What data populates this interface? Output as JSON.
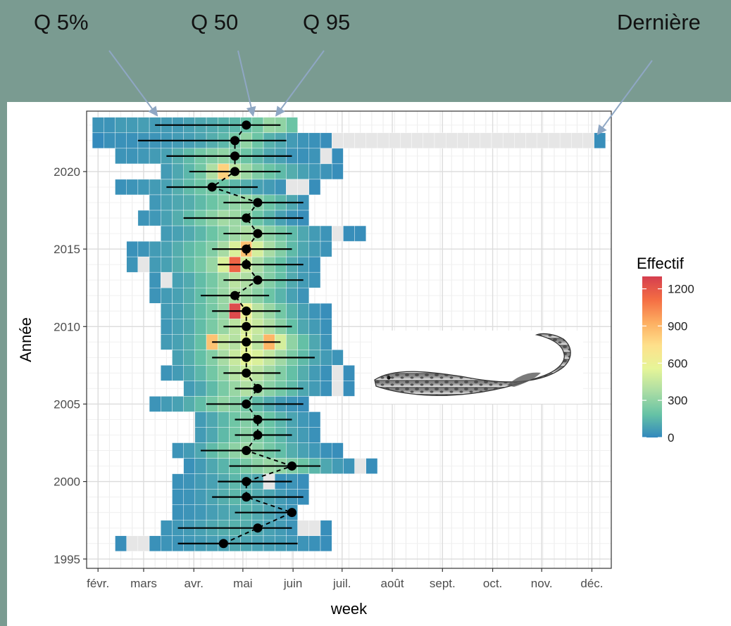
{
  "callouts": [
    {
      "label": "Q 5%",
      "week": 10.2
    },
    {
      "label": "Q 50",
      "week": 18.6
    },
    {
      "label": "Q 95",
      "week": 20.6
    },
    {
      "label": "Dernière",
      "week": 48.8
    }
  ],
  "chart_data": {
    "type": "heatmap",
    "xlabel": "week",
    "ylabel": "Année",
    "x_tick_labels": [
      "févr.",
      "mars",
      "avr.",
      "mai",
      "juin",
      "juil.",
      "août",
      "sept.",
      "oct.",
      "nov.",
      "déc."
    ],
    "x_tick_weeks": [
      5,
      9,
      13.4,
      17.7,
      22.1,
      26.4,
      30.8,
      35.2,
      39.6,
      43.9,
      48.3
    ],
    "xlim": [
      4,
      50
    ],
    "y_ticks": [
      1995,
      2000,
      2005,
      2010,
      2015,
      2020
    ],
    "ylim": [
      1994.4,
      2023.9
    ],
    "legend": {
      "title": "Effectif",
      "ticks": [
        0,
        300,
        600,
        900,
        1200
      ],
      "range": [
        0,
        1300
      ],
      "position": "right",
      "colors": [
        "#3288bd",
        "#66c2a5",
        "#abdda4",
        "#e6f598",
        "#fee08b",
        "#fdae61",
        "#f46d43",
        "#d53e4f"
      ]
    },
    "missing_color": "#e6e6e6",
    "grid": true,
    "quantiles": [
      {
        "year": 2023,
        "q5": 10.0,
        "q50": 18.0,
        "q95": 21.0
      },
      {
        "year": 2022,
        "q5": 8.5,
        "q50": 17.0,
        "q95": 21.5
      },
      {
        "year": 2021,
        "q5": 11.0,
        "q50": 17.0,
        "q95": 22.0
      },
      {
        "year": 2020,
        "q5": 13.0,
        "q50": 17.0,
        "q95": 21.0
      },
      {
        "year": 2019,
        "q5": 11.0,
        "q50": 15.0,
        "q95": 19.0
      },
      {
        "year": 2018,
        "q5": 16.0,
        "q50": 19.0,
        "q95": 23.0
      },
      {
        "year": 2017,
        "q5": 12.5,
        "q50": 18.0,
        "q95": 23.0
      },
      {
        "year": 2016,
        "q5": 16.0,
        "q50": 19.0,
        "q95": 22.0
      },
      {
        "year": 2015,
        "q5": 15.0,
        "q50": 18.0,
        "q95": 22.0
      },
      {
        "year": 2014,
        "q5": 15.5,
        "q50": 18.0,
        "q95": 23.0
      },
      {
        "year": 2013,
        "q5": 16.0,
        "q50": 19.0,
        "q95": 23.0
      },
      {
        "year": 2012,
        "q5": 14.0,
        "q50": 17.0,
        "q95": 20.0
      },
      {
        "year": 2011,
        "q5": 15.0,
        "q50": 18.0,
        "q95": 21.0
      },
      {
        "year": 2010,
        "q5": 16.0,
        "q50": 18.0,
        "q95": 22.0
      },
      {
        "year": 2009,
        "q5": 15.0,
        "q50": 18.0,
        "q95": 21.0
      },
      {
        "year": 2008,
        "q5": 15.0,
        "q50": 18.0,
        "q95": 24.0
      },
      {
        "year": 2007,
        "q5": 16.0,
        "q50": 18.0,
        "q95": 21.0
      },
      {
        "year": 2006,
        "q5": 17.0,
        "q50": 19.0,
        "q95": 23.0
      },
      {
        "year": 2005,
        "q5": 14.5,
        "q50": 18.0,
        "q95": 23.0
      },
      {
        "year": 2004,
        "q5": 17.0,
        "q50": 19.0,
        "q95": 22.0
      },
      {
        "year": 2003,
        "q5": 17.0,
        "q50": 19.0,
        "q95": 22.0
      },
      {
        "year": 2002,
        "q5": 14.0,
        "q50": 18.0,
        "q95": 21.0
      },
      {
        "year": 2001,
        "q5": 16.5,
        "q50": 22.0,
        "q95": 24.5
      },
      {
        "year": 2000,
        "q5": 15.5,
        "q50": 18.0,
        "q95": 22.0
      },
      {
        "year": 1999,
        "q5": 15.0,
        "q50": 18.0,
        "q95": 23.0
      },
      {
        "year": 1998,
        "q5": 17.0,
        "q50": 22.0,
        "q95": 22.0
      },
      {
        "year": 1997,
        "q5": 12.0,
        "q50": 19.0,
        "q95": 22.0
      },
      {
        "year": 1996,
        "q5": 12.0,
        "q50": 16.0,
        "q95": 22.5
      }
    ],
    "rows": [
      {
        "year": 2023,
        "start": 5,
        "values": [
          40,
          40,
          60,
          60,
          70,
          60,
          60,
          60,
          80,
          100,
          110,
          130,
          150,
          180,
          220,
          320,
          300,
          200
        ]
      },
      {
        "year": 2022,
        "start": 5,
        "values": [
          10,
          30,
          30,
          30,
          40,
          40,
          50,
          60,
          70,
          90,
          120,
          150,
          220,
          300,
          200,
          130,
          100,
          60,
          40,
          30,
          20,
          null,
          null,
          null,
          null,
          null,
          null,
          null,
          null,
          null,
          null,
          null,
          null,
          null,
          null,
          null,
          null,
          null,
          null,
          null,
          null,
          null,
          null,
          null,
          20
        ]
      },
      {
        "year": 2021,
        "start": 7,
        "values": [
          40,
          40,
          50,
          60,
          80,
          120,
          160,
          220,
          260,
          300,
          250,
          200,
          150,
          100,
          80,
          40,
          30,
          40,
          null,
          20
        ]
      },
      {
        "year": 2020,
        "start": 11,
        "values": [
          60,
          100,
          150,
          220,
          380,
          800,
          420,
          330,
          250,
          200,
          160,
          120,
          80,
          50,
          40,
          20
        ]
      },
      {
        "year": 2019,
        "start": 7,
        "values": [
          30,
          40,
          50,
          60,
          80,
          120,
          160,
          200,
          230,
          200,
          150,
          120,
          80,
          60,
          40,
          null,
          null,
          20
        ]
      },
      {
        "year": 2018,
        "start": 10,
        "values": [
          50,
          80,
          100,
          120,
          160,
          200,
          250,
          300,
          320,
          260,
          200,
          150,
          100,
          40
        ]
      },
      {
        "year": 2017,
        "start": 9,
        "values": [
          40,
          50,
          80,
          120,
          160,
          220,
          280,
          350,
          330,
          280,
          200,
          140,
          80,
          40,
          20
        ]
      },
      {
        "year": 2016,
        "start": 11,
        "values": [
          60,
          80,
          110,
          150,
          200,
          260,
          330,
          380,
          340,
          280,
          220,
          160,
          100,
          60,
          40,
          null,
          20,
          20
        ]
      },
      {
        "year": 2015,
        "start": 8,
        "values": [
          30,
          40,
          60,
          80,
          120,
          160,
          200,
          260,
          360,
          520,
          860,
          500,
          360,
          260,
          160,
          100,
          60,
          40
        ]
      },
      {
        "year": 2014,
        "start": 8,
        "values": [
          40,
          null,
          60,
          80,
          120,
          170,
          230,
          320,
          520,
          1150,
          480,
          360,
          260,
          180,
          110,
          60,
          30
        ]
      },
      {
        "year": 2013,
        "start": 10,
        "values": [
          40,
          null,
          80,
          110,
          170,
          230,
          320,
          420,
          380,
          320,
          260,
          180,
          110,
          60,
          40
        ]
      },
      {
        "year": 2012,
        "start": 10,
        "values": [
          40,
          60,
          80,
          120,
          170,
          240,
          320,
          390,
          340,
          280,
          200,
          140,
          80,
          40
        ]
      },
      {
        "year": 2011,
        "start": 11,
        "values": [
          60,
          80,
          120,
          170,
          230,
          310,
          1250,
          600,
          420,
          320,
          220,
          140,
          80,
          40,
          20
        ]
      },
      {
        "year": 2010,
        "start": 11,
        "values": [
          50,
          80,
          110,
          170,
          240,
          320,
          420,
          520,
          460,
          380,
          280,
          180,
          100,
          60,
          30
        ]
      },
      {
        "year": 2009,
        "start": 11,
        "values": [
          60,
          80,
          120,
          180,
          850,
          450,
          400,
          550,
          420,
          900,
          500,
          300,
          180,
          100,
          40
        ]
      },
      {
        "year": 2008,
        "start": 12,
        "values": [
          80,
          120,
          180,
          260,
          360,
          460,
          560,
          520,
          440,
          340,
          240,
          160,
          100,
          60,
          40
        ]
      },
      {
        "year": 2007,
        "start": 11,
        "values": [
          40,
          60,
          100,
          150,
          220,
          300,
          400,
          470,
          420,
          340,
          260,
          180,
          120,
          60,
          30,
          null,
          20
        ]
      },
      {
        "year": 2006,
        "start": 13,
        "values": [
          60,
          100,
          160,
          240,
          320,
          390,
          340,
          280,
          220,
          160,
          100,
          60,
          30,
          null,
          20
        ]
      },
      {
        "year": 2005,
        "start": 10,
        "values": [
          40,
          60,
          80,
          120,
          170,
          230,
          300,
          270,
          220,
          160,
          110,
          60,
          40,
          20
        ]
      },
      {
        "year": 2004,
        "start": 14,
        "values": [
          60,
          100,
          150,
          210,
          260,
          240,
          190,
          140,
          90,
          50,
          30
        ]
      },
      {
        "year": 2003,
        "start": 14,
        "values": [
          60,
          100,
          160,
          220,
          280,
          250,
          200,
          150,
          100,
          60,
          30
        ]
      },
      {
        "year": 2002,
        "start": 12,
        "values": [
          40,
          60,
          100,
          160,
          220,
          290,
          330,
          280,
          220,
          170,
          120,
          80,
          50,
          30,
          20
        ]
      },
      {
        "year": 2001,
        "start": 13,
        "values": [
          30,
          60,
          100,
          140,
          180,
          230,
          280,
          320,
          300,
          250,
          200,
          150,
          100,
          60,
          40,
          null,
          20
        ]
      },
      {
        "year": 2000,
        "start": 12,
        "values": [
          30,
          40,
          60,
          80,
          110,
          150,
          120,
          100,
          null,
          30,
          40,
          20
        ]
      },
      {
        "year": 1999,
        "start": 12,
        "values": [
          30,
          40,
          60,
          90,
          120,
          150,
          130,
          110,
          90,
          60,
          40,
          20
        ]
      },
      {
        "year": 1998,
        "start": 12,
        "values": [
          30,
          40,
          50,
          70,
          90,
          110,
          130,
          110,
          90,
          60,
          40
        ]
      },
      {
        "year": 1997,
        "start": 11,
        "values": [
          40,
          50,
          60,
          80,
          100,
          120,
          130,
          120,
          100,
          80,
          60,
          40,
          null,
          null,
          20
        ]
      },
      {
        "year": 1996,
        "start": 7,
        "values": [
          20,
          null,
          null,
          30,
          40,
          40,
          50,
          60,
          70,
          80,
          100,
          90,
          80,
          70,
          60,
          50,
          40,
          30,
          20
        ]
      }
    ]
  }
}
